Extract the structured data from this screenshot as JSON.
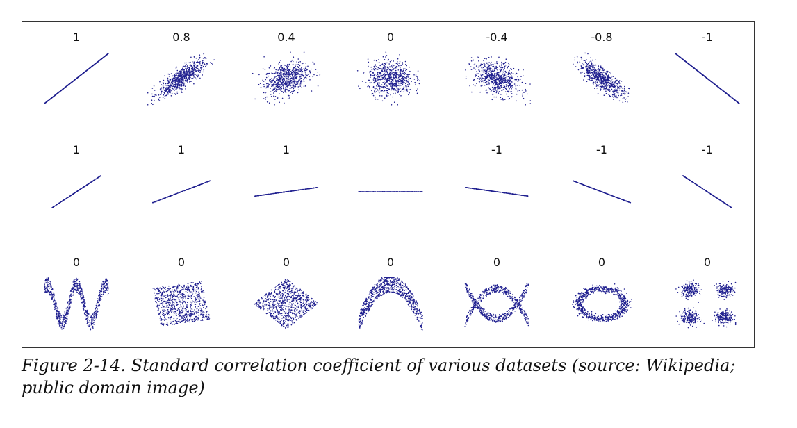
{
  "caption": "Figure 2-14. Standard correlation coefficient of various datasets (source: Wikipedia; public domain image)",
  "colors": {
    "point": "#1f1f8f",
    "frame": "#333333"
  },
  "chart_data": {
    "type": "scatter",
    "layout": "grid 3 rows x 7 columns",
    "rows": [
      {
        "panels": [
          {
            "label": "1",
            "correlation": 1,
            "pattern": "perfect-positive-line"
          },
          {
            "label": "0.8",
            "correlation": 0.8,
            "pattern": "elliptical-cloud"
          },
          {
            "label": "0.4",
            "correlation": 0.4,
            "pattern": "elliptical-cloud"
          },
          {
            "label": "0",
            "correlation": 0,
            "pattern": "round-cloud"
          },
          {
            "label": "-0.4",
            "correlation": -0.4,
            "pattern": "elliptical-cloud"
          },
          {
            "label": "-0.8",
            "correlation": -0.8,
            "pattern": "elliptical-cloud"
          },
          {
            "label": "-1",
            "correlation": -1,
            "pattern": "perfect-negative-line"
          }
        ]
      },
      {
        "panels": [
          {
            "label": "1",
            "correlation": 1,
            "slope_deg": 40
          },
          {
            "label": "1",
            "correlation": 1,
            "slope_deg": 26
          },
          {
            "label": "1",
            "correlation": 1,
            "slope_deg": 10
          },
          {
            "label": "",
            "correlation": null,
            "slope_deg": 0
          },
          {
            "label": "-1",
            "correlation": -1,
            "slope_deg": -10
          },
          {
            "label": "-1",
            "correlation": -1,
            "slope_deg": -26
          },
          {
            "label": "-1",
            "correlation": -1,
            "slope_deg": -40
          }
        ]
      },
      {
        "panels": [
          {
            "label": "0",
            "correlation": 0,
            "pattern": "w-shape"
          },
          {
            "label": "0",
            "correlation": 0,
            "pattern": "rotated-square"
          },
          {
            "label": "0",
            "correlation": 0,
            "pattern": "diamond"
          },
          {
            "label": "0",
            "correlation": 0,
            "pattern": "parabola"
          },
          {
            "label": "0",
            "correlation": 0,
            "pattern": "x-shape"
          },
          {
            "label": "0",
            "correlation": 0,
            "pattern": "ring"
          },
          {
            "label": "0",
            "correlation": 0,
            "pattern": "four-clusters"
          }
        ]
      }
    ]
  }
}
